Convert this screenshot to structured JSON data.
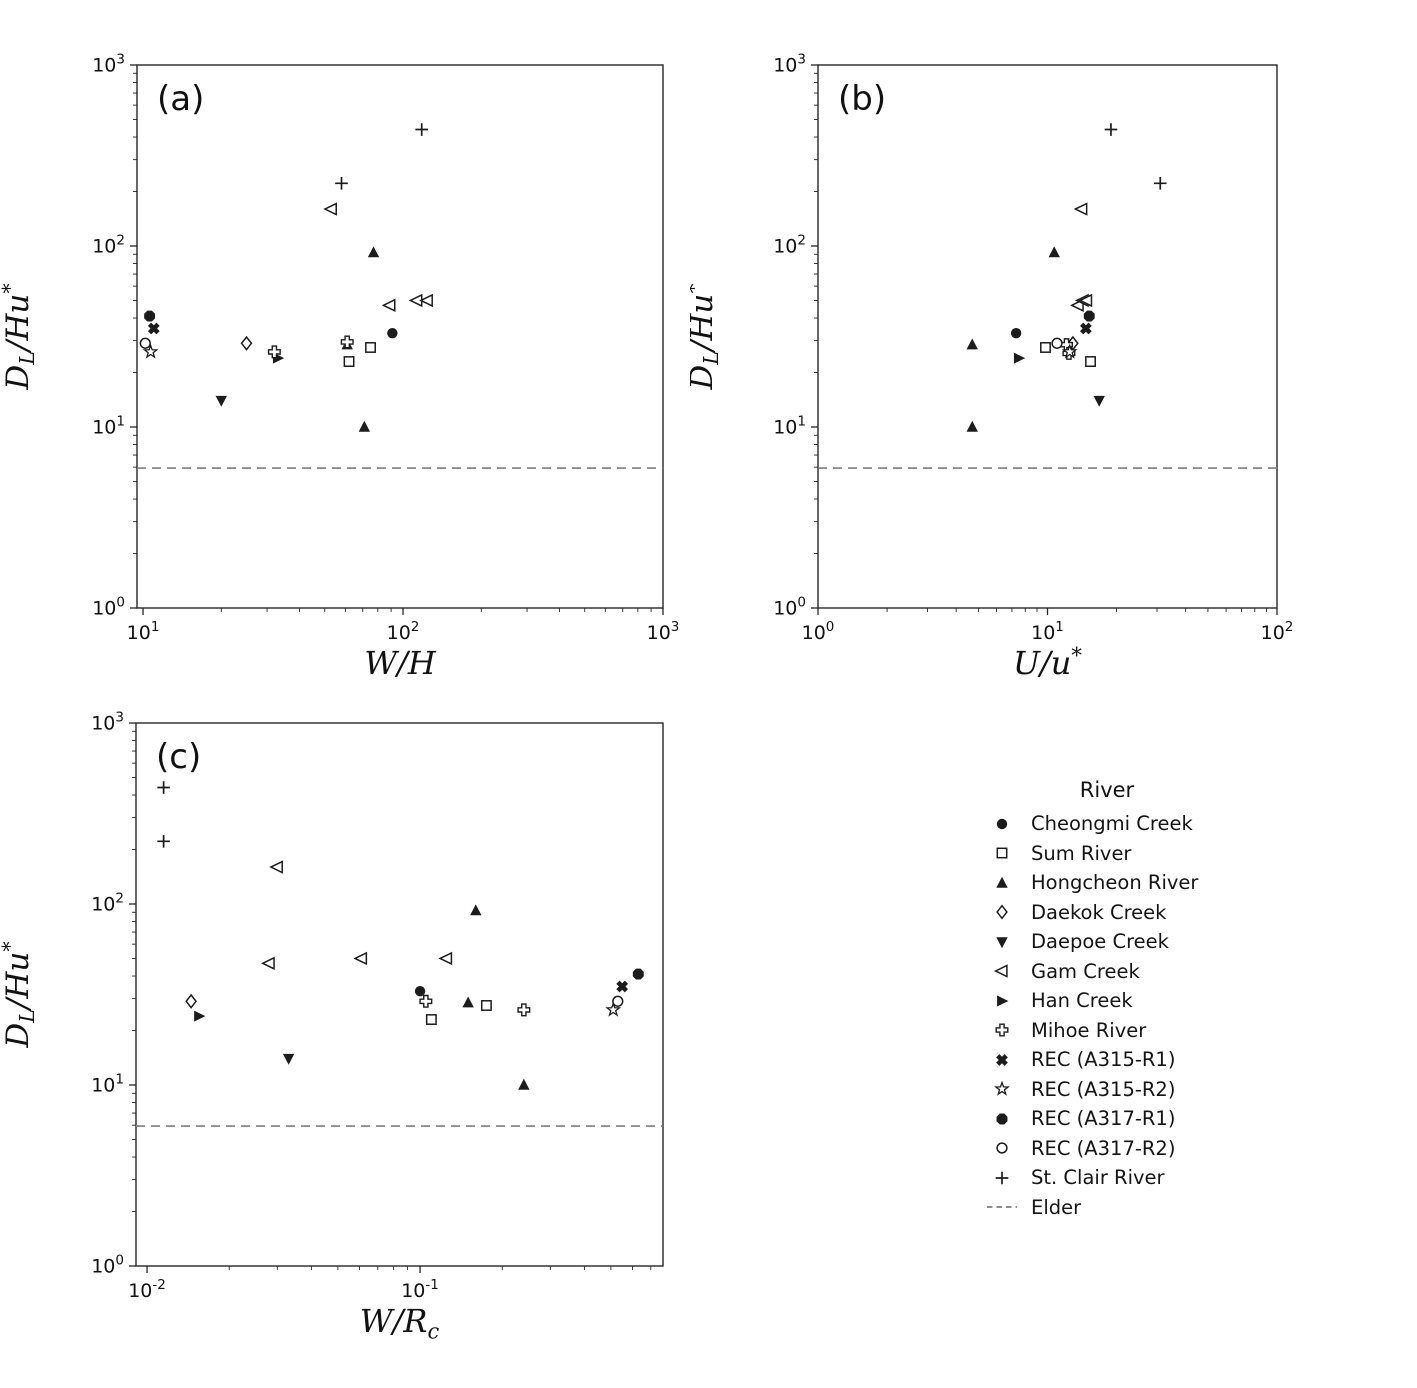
{
  "styles": {
    "marker_color": "#1c1c1c",
    "axis_color": "#262626",
    "text_color": "#111111",
    "dash_color": "#7d7d7d",
    "background": "#ffffff"
  },
  "legend": {
    "title": "River",
    "items": [
      {
        "marker": "circle_filled",
        "label": "Cheongmi Creek"
      },
      {
        "marker": "square_open",
        "label": "Sum River"
      },
      {
        "marker": "triangle_up_filled",
        "label": "Hongcheon River"
      },
      {
        "marker": "diamond_open",
        "label": "Daekok Creek"
      },
      {
        "marker": "triangle_down_filled",
        "label": "Daepoe Creek"
      },
      {
        "marker": "triangle_left_open",
        "label": "Gam Creek"
      },
      {
        "marker": "triangle_right_filled",
        "label": "Han Creek"
      },
      {
        "marker": "plus_open",
        "label": "Mihoe River"
      },
      {
        "marker": "x_filled",
        "label": "REC (A315-R1)"
      },
      {
        "marker": "star_open",
        "label": "REC (A315-R2)"
      },
      {
        "marker": "octagon_filled",
        "label": "REC (A317-R1)"
      },
      {
        "marker": "circle_open",
        "label": "REC (A317-R2)"
      },
      {
        "marker": "plus_line",
        "label": "St. Clair River"
      },
      {
        "marker": "dashed_line",
        "label": "Elder"
      }
    ]
  },
  "chart_data": [
    {
      "id": "a",
      "type": "scatter",
      "panel_label": "(a)",
      "x_scale": "log",
      "y_scale": "log",
      "xlim": [
        9.48,
        1000
      ],
      "ylim": [
        1,
        1000
      ],
      "xticks_exp": [
        1,
        2,
        3
      ],
      "yticks_exp": [
        0,
        1,
        2,
        3
      ],
      "grid": false,
      "xlabel": [
        {
          "t": "W/H"
        }
      ],
      "ylabel": [
        {
          "t": "D"
        },
        {
          "t": "L",
          "sub": true
        },
        {
          "t": "/Hu"
        },
        {
          "t": "*",
          "sup": true
        }
      ],
      "ref_line": {
        "label": "Elder",
        "y": 5.93,
        "style": "dashed"
      },
      "series": [
        {
          "name": "Cheongmi Creek",
          "marker": "circle_filled",
          "points": [
            [
              91,
              33
            ]
          ]
        },
        {
          "name": "Sum River",
          "marker": "square_open",
          "points": [
            [
              75,
              27.5
            ],
            [
              62,
              23
            ]
          ]
        },
        {
          "name": "Hongcheon River",
          "marker": "triangle_up_filled",
          "points": [
            [
              77,
              92
            ],
            [
              61,
              28.5
            ],
            [
              71,
              10
            ]
          ]
        },
        {
          "name": "Daekok Creek",
          "marker": "diamond_open",
          "points": [
            [
              25,
              29
            ]
          ]
        },
        {
          "name": "Daepoe Creek",
          "marker": "triangle_down_filled",
          "points": [
            [
              20,
              14
            ]
          ]
        },
        {
          "name": "Gam Creek",
          "marker": "triangle_left_open",
          "points": [
            [
              53,
              160
            ],
            [
              89,
              47
            ],
            [
              113,
              50
            ],
            [
              124,
              50
            ]
          ]
        },
        {
          "name": "Han Creek",
          "marker": "triangle_right_filled",
          "points": [
            [
              33,
              24
            ]
          ]
        },
        {
          "name": "Mihoe River",
          "marker": "plus_open",
          "points": [
            [
              61,
              29.5
            ],
            [
              32,
              26
            ]
          ]
        },
        {
          "name": "REC (A315-R1)",
          "marker": "x_filled",
          "points": [
            [
              11,
              35
            ]
          ]
        },
        {
          "name": "REC (A315-R2)",
          "marker": "star_open",
          "points": [
            [
              10.7,
              26
            ]
          ]
        },
        {
          "name": "REC (A317-R1)",
          "marker": "octagon_filled",
          "points": [
            [
              10.6,
              41
            ]
          ]
        },
        {
          "name": "REC (A317-R2)",
          "marker": "circle_open",
          "points": [
            [
              10.2,
              29
            ]
          ]
        },
        {
          "name": "St. Clair River",
          "marker": "plus_line",
          "points": [
            [
              118,
              440
            ],
            [
              58,
              222
            ]
          ]
        }
      ]
    },
    {
      "id": "b",
      "type": "scatter",
      "panel_label": "(b)",
      "x_scale": "log",
      "y_scale": "log",
      "xlim": [
        1,
        100
      ],
      "ylim": [
        1,
        1000
      ],
      "xticks_exp": [
        0,
        1,
        2
      ],
      "yticks_exp": [
        0,
        1,
        2,
        3
      ],
      "grid": false,
      "xlabel": [
        {
          "t": "U/u"
        },
        {
          "t": "*",
          "sup": true
        }
      ],
      "ylabel": [
        {
          "t": "D"
        },
        {
          "t": "L",
          "sub": true
        },
        {
          "t": "/Hu"
        },
        {
          "t": "*",
          "sup": true
        }
      ],
      "ref_line": {
        "label": "Elder",
        "y": 5.93,
        "style": "dashed"
      },
      "series": [
        {
          "name": "Cheongmi Creek",
          "marker": "circle_filled",
          "points": [
            [
              7.3,
              33
            ]
          ]
        },
        {
          "name": "Sum River",
          "marker": "square_open",
          "points": [
            [
              9.8,
              27.5
            ],
            [
              15.4,
              23
            ]
          ]
        },
        {
          "name": "Hongcheon River",
          "marker": "triangle_up_filled",
          "points": [
            [
              10.7,
              92
            ],
            [
              4.7,
              28.5
            ],
            [
              4.7,
              10
            ]
          ]
        },
        {
          "name": "Daekok Creek",
          "marker": "diamond_open",
          "points": [
            [
              12.9,
              29
            ]
          ]
        },
        {
          "name": "Daepoe Creek",
          "marker": "triangle_down_filled",
          "points": [
            [
              16.8,
              14
            ]
          ]
        },
        {
          "name": "Gam Creek",
          "marker": "triangle_left_open",
          "points": [
            [
              14.1,
              160
            ],
            [
              13.6,
              47
            ],
            [
              14.3,
              50
            ],
            [
              14.8,
              50
            ]
          ]
        },
        {
          "name": "Han Creek",
          "marker": "triangle_right_filled",
          "points": [
            [
              7.5,
              24
            ]
          ]
        },
        {
          "name": "Mihoe River",
          "marker": "plus_open",
          "points": [
            [
              12.1,
              28.5
            ],
            [
              12.4,
              25.5
            ]
          ]
        },
        {
          "name": "REC (A315-R1)",
          "marker": "x_filled",
          "points": [
            [
              14.7,
              35
            ]
          ]
        },
        {
          "name": "REC (A315-R2)",
          "marker": "star_open",
          "points": [
            [
              12.5,
              26
            ]
          ]
        },
        {
          "name": "REC (A317-R1)",
          "marker": "octagon_filled",
          "points": [
            [
              15.2,
              41
            ]
          ]
        },
        {
          "name": "REC (A317-R2)",
          "marker": "circle_open",
          "points": [
            [
              11,
              29
            ]
          ]
        },
        {
          "name": "St. Clair River",
          "marker": "plus_line",
          "points": [
            [
              18.9,
              440
            ],
            [
              31,
              222
            ]
          ]
        }
      ]
    },
    {
      "id": "c",
      "type": "scatter",
      "panel_label": "(c)",
      "x_scale": "log",
      "y_scale": "log",
      "xlim": [
        0.00911,
        0.776
      ],
      "ylim": [
        1,
        1000
      ],
      "xticks_exp": [
        -2,
        -1
      ],
      "yticks_exp": [
        0,
        1,
        2,
        3
      ],
      "grid": false,
      "xlabel": [
        {
          "t": "W/R"
        },
        {
          "t": "c",
          "sub": true
        }
      ],
      "ylabel": [
        {
          "t": "D"
        },
        {
          "t": "L",
          "sub": true
        },
        {
          "t": "/Hu"
        },
        {
          "t": "*",
          "sup": true
        }
      ],
      "ref_line": {
        "label": "Elder",
        "y": 5.93,
        "style": "dashed"
      },
      "series": [
        {
          "name": "Cheongmi Creek",
          "marker": "circle_filled",
          "points": [
            [
              0.1,
              33
            ]
          ]
        },
        {
          "name": "Sum River",
          "marker": "square_open",
          "points": [
            [
              0.175,
              27.5
            ],
            [
              0.11,
              23
            ]
          ]
        },
        {
          "name": "Hongcheon River",
          "marker": "triangle_up_filled",
          "points": [
            [
              0.16,
              92
            ],
            [
              0.15,
              28.5
            ],
            [
              0.24,
              10
            ]
          ]
        },
        {
          "name": "Daekok Creek",
          "marker": "diamond_open",
          "points": [
            [
              0.0145,
              29
            ]
          ]
        },
        {
          "name": "Daepoe Creek",
          "marker": "triangle_down_filled",
          "points": [
            [
              0.033,
              14
            ]
          ]
        },
        {
          "name": "Gam Creek",
          "marker": "triangle_left_open",
          "points": [
            [
              0.03,
              160
            ],
            [
              0.028,
              47
            ],
            [
              0.061,
              50
            ],
            [
              0.125,
              50
            ]
          ]
        },
        {
          "name": "Han Creek",
          "marker": "triangle_right_filled",
          "points": [
            [
              0.0155,
              24
            ]
          ]
        },
        {
          "name": "Mihoe River",
          "marker": "plus_open",
          "points": [
            [
              0.105,
              29
            ],
            [
              0.24,
              26
            ]
          ]
        },
        {
          "name": "REC (A315-R1)",
          "marker": "x_filled",
          "points": [
            [
              0.55,
              35
            ]
          ]
        },
        {
          "name": "REC (A315-R2)",
          "marker": "star_open",
          "points": [
            [
              0.51,
              26
            ]
          ]
        },
        {
          "name": "REC (A317-R1)",
          "marker": "octagon_filled",
          "points": [
            [
              0.63,
              41
            ]
          ]
        },
        {
          "name": "REC (A317-R2)",
          "marker": "circle_open",
          "points": [
            [
              0.53,
              29
            ]
          ]
        },
        {
          "name": "St. Clair River",
          "marker": "plus_line",
          "points": [
            [
              0.0115,
              440
            ],
            [
              0.0115,
              222
            ]
          ]
        }
      ]
    }
  ]
}
